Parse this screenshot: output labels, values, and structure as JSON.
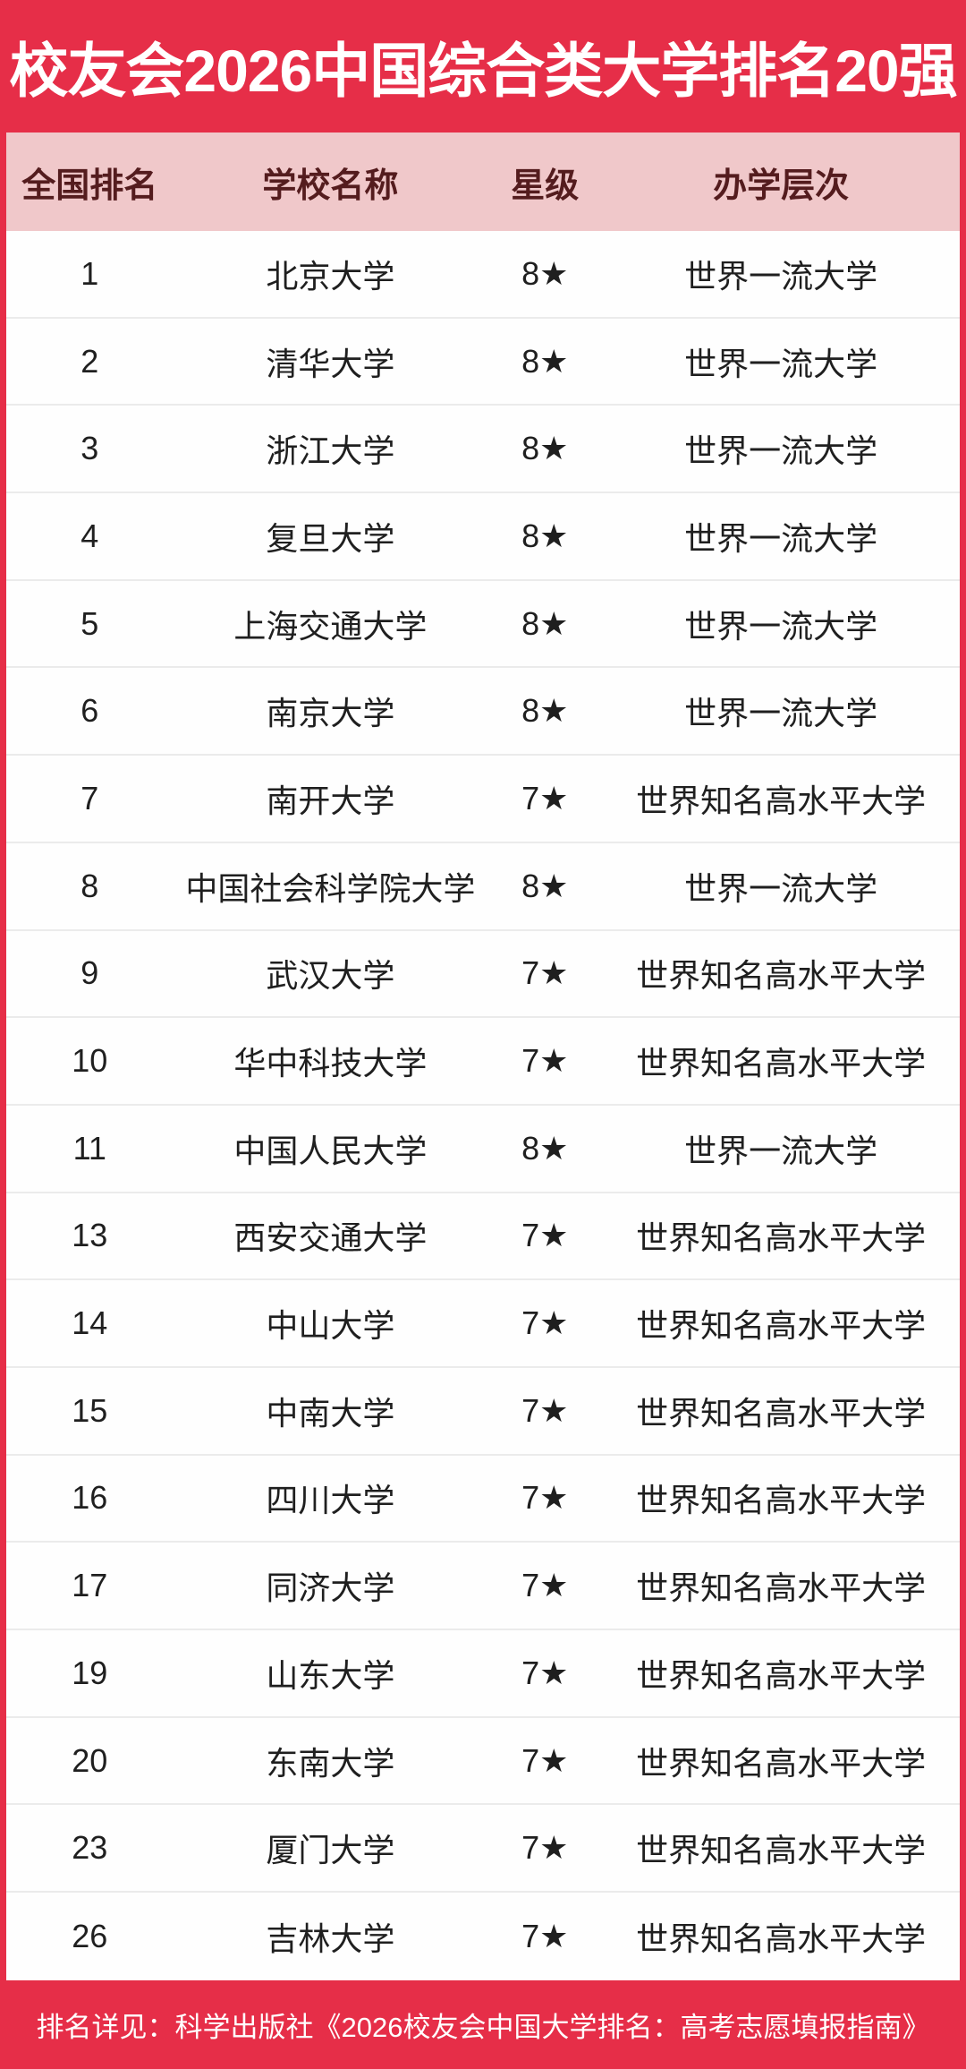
{
  "banner": {
    "title": "校友会2026中国综合类大学排名20强"
  },
  "table": {
    "columns": [
      "全国排名",
      "学校名称",
      "星级",
      "办学层次"
    ],
    "rows": [
      {
        "rank": "1",
        "name": "北京大学",
        "star": "8★",
        "level": "世界一流大学"
      },
      {
        "rank": "2",
        "name": "清华大学",
        "star": "8★",
        "level": "世界一流大学"
      },
      {
        "rank": "3",
        "name": "浙江大学",
        "star": "8★",
        "level": "世界一流大学"
      },
      {
        "rank": "4",
        "name": "复旦大学",
        "star": "8★",
        "level": "世界一流大学"
      },
      {
        "rank": "5",
        "name": "上海交通大学",
        "star": "8★",
        "level": "世界一流大学"
      },
      {
        "rank": "6",
        "name": "南京大学",
        "star": "8★",
        "level": "世界一流大学"
      },
      {
        "rank": "7",
        "name": "南开大学",
        "star": "7★",
        "level": "世界知名高水平大学"
      },
      {
        "rank": "8",
        "name": "中国社会科学院大学",
        "star": "8★",
        "level": "世界一流大学"
      },
      {
        "rank": "9",
        "name": "武汉大学",
        "star": "7★",
        "level": "世界知名高水平大学"
      },
      {
        "rank": "10",
        "name": "华中科技大学",
        "star": "7★",
        "level": "世界知名高水平大学"
      },
      {
        "rank": "11",
        "name": "中国人民大学",
        "star": "8★",
        "level": "世界一流大学"
      },
      {
        "rank": "13",
        "name": "西安交通大学",
        "star": "7★",
        "level": "世界知名高水平大学"
      },
      {
        "rank": "14",
        "name": "中山大学",
        "star": "7★",
        "level": "世界知名高水平大学"
      },
      {
        "rank": "15",
        "name": "中南大学",
        "star": "7★",
        "level": "世界知名高水平大学"
      },
      {
        "rank": "16",
        "name": "四川大学",
        "star": "7★",
        "level": "世界知名高水平大学"
      },
      {
        "rank": "17",
        "name": "同济大学",
        "star": "7★",
        "level": "世界知名高水平大学"
      },
      {
        "rank": "19",
        "name": "山东大学",
        "star": "7★",
        "level": "世界知名高水平大学"
      },
      {
        "rank": "20",
        "name": "东南大学",
        "star": "7★",
        "level": "世界知名高水平大学"
      },
      {
        "rank": "23",
        "name": "厦门大学",
        "star": "7★",
        "level": "世界知名高水平大学"
      },
      {
        "rank": "26",
        "name": "吉林大学",
        "star": "7★",
        "level": "世界知名高水平大学"
      }
    ]
  },
  "footer": {
    "note": "排名详见：科学出版社《2026校友会中国大学排名：高考志愿填报指南》"
  },
  "colors": {
    "banner_red": "#e62e48",
    "header_pink": "#f0c8ca",
    "header_text": "#541c1e",
    "body_text": "#1f1f1f",
    "separator": "#ebebeb"
  },
  "chart_data": {
    "type": "table",
    "title": "校友会2026中国综合类大学排名20强",
    "columns": [
      "全国排名",
      "学校名称",
      "星级",
      "办学层次"
    ],
    "rows": [
      [
        "1",
        "北京大学",
        "8★",
        "世界一流大学"
      ],
      [
        "2",
        "清华大学",
        "8★",
        "世界一流大学"
      ],
      [
        "3",
        "浙江大学",
        "8★",
        "世界一流大学"
      ],
      [
        "4",
        "复旦大学",
        "8★",
        "世界一流大学"
      ],
      [
        "5",
        "上海交通大学",
        "8★",
        "世界一流大学"
      ],
      [
        "6",
        "南京大学",
        "8★",
        "世界一流大学"
      ],
      [
        "7",
        "南开大学",
        "7★",
        "世界知名高水平大学"
      ],
      [
        "8",
        "中国社会科学院大学",
        "8★",
        "世界一流大学"
      ],
      [
        "9",
        "武汉大学",
        "7★",
        "世界知名高水平大学"
      ],
      [
        "10",
        "华中科技大学",
        "7★",
        "世界知名高水平大学"
      ],
      [
        "11",
        "中国人民大学",
        "8★",
        "世界一流大学"
      ],
      [
        "13",
        "西安交通大学",
        "7★",
        "世界知名高水平大学"
      ],
      [
        "14",
        "中山大学",
        "7★",
        "世界知名高水平大学"
      ],
      [
        "15",
        "中南大学",
        "7★",
        "世界知名高水平大学"
      ],
      [
        "16",
        "四川大学",
        "7★",
        "世界知名高水平大学"
      ],
      [
        "17",
        "同济大学",
        "7★",
        "世界知名高水平大学"
      ],
      [
        "19",
        "山东大学",
        "7★",
        "世界知名高水平大学"
      ],
      [
        "20",
        "东南大学",
        "7★",
        "世界知名高水平大学"
      ],
      [
        "23",
        "厦门大学",
        "7★",
        "世界知名高水平大学"
      ],
      [
        "26",
        "吉林大学",
        "7★",
        "世界知名高水平大学"
      ]
    ],
    "footnote": "排名详见：科学出版社《2026校友会中国大学排名：高考志愿填报指南》"
  }
}
